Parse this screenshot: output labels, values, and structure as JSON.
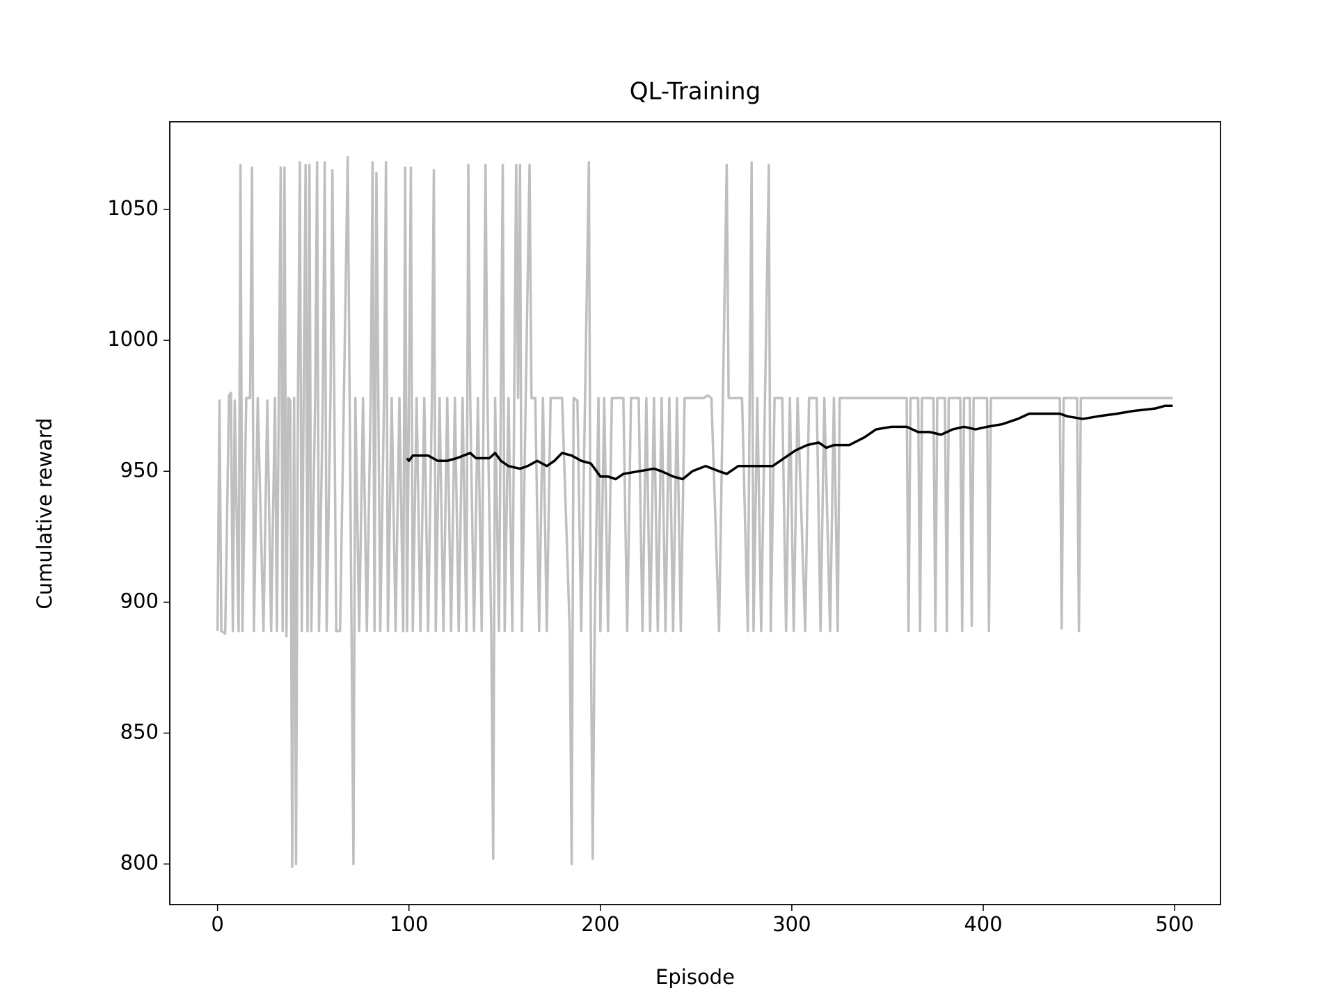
{
  "chart_data": {
    "type": "line",
    "title": "QL-Training",
    "x_label": "Episode",
    "y_label": "Cumulative reward",
    "xlim": [
      -24.95,
      523.95
    ],
    "ylim": [
      784.5,
      1083.5
    ],
    "xticks": [
      0,
      100,
      200,
      300,
      400,
      500
    ],
    "yticks": [
      800,
      850,
      900,
      950,
      1000,
      1050
    ],
    "grid": false,
    "series": [
      {
        "color": "#bfbfbf",
        "x": [
          0,
          1,
          2,
          4,
          6,
          7,
          8,
          9,
          11,
          12,
          13,
          15,
          17,
          18,
          19,
          21,
          24,
          26,
          28,
          30,
          31,
          32,
          33,
          34,
          35,
          36,
          37,
          38,
          39,
          40,
          41,
          42,
          43,
          44,
          45,
          46,
          47,
          48,
          49,
          51,
          52,
          53,
          55,
          56,
          57,
          59,
          60,
          61,
          62,
          64,
          66,
          68,
          69,
          70,
          71,
          72,
          74,
          76,
          78,
          80,
          81,
          82,
          83,
          84,
          85,
          87,
          88,
          89,
          91,
          93,
          95,
          97,
          98,
          99,
          100,
          101,
          102,
          104,
          106,
          108,
          110,
          112,
          113,
          114,
          116,
          118,
          120,
          122,
          124,
          126,
          128,
          130,
          131,
          132,
          134,
          136,
          138,
          140,
          141,
          143,
          144,
          145,
          147,
          149,
          150,
          152,
          154,
          156,
          157,
          158,
          159,
          161,
          163,
          164,
          166,
          168,
          170,
          172,
          174,
          180,
          184,
          185,
          186,
          188,
          190,
          192,
          194,
          195,
          196,
          197,
          199,
          200,
          202,
          204,
          206,
          212,
          214,
          216,
          220,
          222,
          224,
          226,
          228,
          230,
          232,
          234,
          236,
          238,
          240,
          242,
          244,
          254,
          256,
          258,
          262,
          264,
          266,
          267,
          274,
          277,
          279,
          280,
          282,
          284,
          286,
          288,
          289,
          291,
          295,
          297,
          299,
          301,
          303,
          307,
          309,
          313,
          315,
          317,
          320,
          322,
          324,
          325,
          360,
          361,
          362,
          366,
          367,
          368,
          374,
          375,
          376,
          380,
          381,
          382,
          388,
          389,
          390,
          393,
          394,
          395,
          402,
          403,
          404,
          440,
          441,
          442,
          449,
          450,
          451,
          499
        ],
        "values": [
          889,
          977,
          889,
          888,
          979,
          980,
          889,
          977,
          889,
          1067,
          889,
          978,
          978,
          1066,
          889,
          978,
          889,
          977,
          889,
          978,
          889,
          978,
          1066,
          889,
          1066,
          887,
          978,
          977,
          799,
          978,
          800,
          977,
          1068,
          889,
          978,
          1067,
          889,
          1067,
          889,
          978,
          1068,
          889,
          978,
          1068,
          889,
          978,
          1065,
          978,
          889,
          889,
          978,
          1070,
          978,
          889,
          800,
          978,
          889,
          978,
          889,
          978,
          1068,
          889,
          1064,
          978,
          889,
          978,
          1068,
          889,
          978,
          889,
          978,
          889,
          1066,
          889,
          978,
          1066,
          889,
          978,
          889,
          978,
          889,
          978,
          1065,
          889,
          978,
          889,
          978,
          889,
          978,
          889,
          978,
          889,
          1067,
          978,
          889,
          978,
          889,
          1067,
          978,
          889,
          802,
          978,
          889,
          1067,
          889,
          978,
          889,
          1067,
          978,
          1067,
          889,
          978,
          1067,
          978,
          978,
          889,
          978,
          889,
          978,
          978,
          889,
          800,
          978,
          977,
          889,
          978,
          1068,
          889,
          802,
          889,
          978,
          889,
          978,
          889,
          978,
          978,
          889,
          978,
          978,
          889,
          978,
          889,
          978,
          889,
          978,
          889,
          978,
          889,
          978,
          889,
          978,
          978,
          979,
          978,
          889,
          978,
          1067,
          978,
          978,
          889,
          1068,
          889,
          978,
          889,
          978,
          1067,
          889,
          978,
          978,
          889,
          978,
          889,
          978,
          889,
          978,
          978,
          889,
          978,
          889,
          978,
          889,
          978,
          978,
          889,
          978,
          978,
          889,
          978,
          978,
          889,
          978,
          978,
          889,
          978,
          978,
          889,
          978,
          978,
          891,
          978,
          978,
          889,
          978,
          978,
          890,
          978,
          978,
          889,
          978,
          978
        ]
      },
      {
        "color": "#000000",
        "x": [
          99,
          100,
          102,
          110,
          115,
          120,
          125,
          132,
          135,
          142,
          145,
          148,
          152,
          158,
          162,
          167,
          172,
          176,
          180,
          185,
          190,
          195,
          200,
          204,
          208,
          212,
          220,
          228,
          232,
          238,
          243,
          248,
          255,
          262,
          266,
          272,
          280,
          286,
          290,
          296,
          302,
          308,
          314,
          318,
          322,
          330,
          338,
          344,
          352,
          360,
          366,
          372,
          378,
          384,
          390,
          396,
          402,
          410,
          418,
          424,
          440,
          444,
          452,
          460,
          470,
          478,
          490,
          495,
          499
        ],
        "values": [
          955,
          954,
          956,
          956,
          954,
          954,
          955,
          957,
          955,
          955,
          957,
          954,
          952,
          951,
          952,
          954,
          952,
          954,
          957,
          956,
          954,
          953,
          948,
          948,
          947,
          949,
          950,
          951,
          950,
          948,
          947,
          950,
          952,
          950,
          949,
          952,
          952,
          952,
          952,
          955,
          958,
          960,
          961,
          959,
          960,
          960,
          963,
          966,
          967,
          967,
          965,
          965,
          964,
          966,
          967,
          966,
          967,
          968,
          970,
          972,
          972,
          971,
          970,
          971,
          972,
          973,
          974,
          975,
          975
        ]
      }
    ]
  }
}
